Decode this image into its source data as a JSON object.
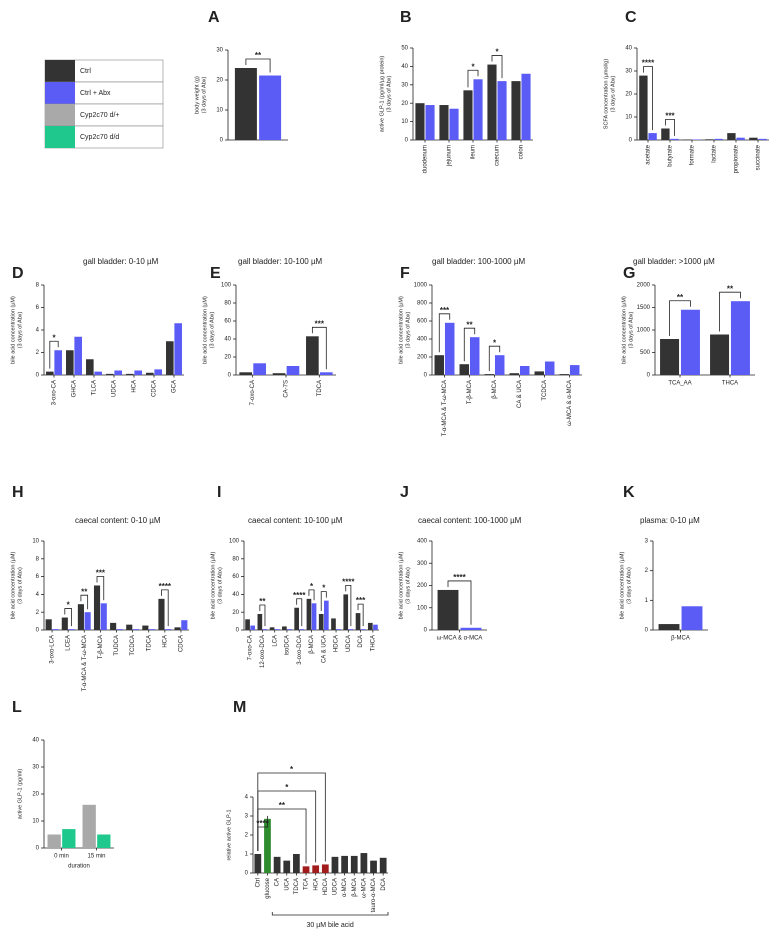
{
  "legend": [
    {
      "label": "Ctrl",
      "color": "#333333"
    },
    {
      "label": "Ctrl + Abx",
      "color": "#5a5cf5"
    },
    {
      "label": "Cyp2c70 d/+",
      "color": "#a9a9a9"
    },
    {
      "label": "Cyp2c70 d/d",
      "color": "#1fc98e"
    }
  ],
  "chart_data": [
    {
      "type": "bar",
      "panel": "A",
      "ylabel": [
        "body weight (g)",
        "(3 days of Abx)"
      ],
      "categories": [
        null
      ],
      "series": [
        {
          "color": "#333333",
          "values": [
            24
          ]
        },
        {
          "color": "#5a5cf5",
          "values": [
            21.5
          ]
        }
      ],
      "ylim": [
        0,
        30
      ],
      "yticks": [
        0,
        10,
        20,
        30
      ],
      "annotations": [
        {
          "text": "**",
          "category": 0
        }
      ]
    },
    {
      "type": "bar",
      "panel": "B",
      "ylabel": [
        "active GLP-1 (pg/ml/µg protein)",
        "(3 days of Abx)"
      ],
      "categories": [
        "duodenum",
        "jejunum",
        "ileum",
        "caecum",
        "colon"
      ],
      "series": [
        {
          "color": "#333333",
          "values": [
            20,
            19,
            27,
            41,
            32
          ]
        },
        {
          "color": "#5a5cf5",
          "values": [
            19,
            17,
            33,
            32,
            36
          ]
        }
      ],
      "ylim": [
        0,
        50
      ],
      "yticks": [
        0,
        10,
        20,
        30,
        40,
        50
      ],
      "annotations": [
        {
          "text": "*",
          "category": 2
        },
        {
          "text": "*",
          "category": 3
        }
      ]
    },
    {
      "type": "bar",
      "panel": "C",
      "ylabel": [
        "SCFA concentration (µmol/g)",
        "(3 days of Abx)"
      ],
      "categories": [
        "acetate",
        "butyrate",
        "formate",
        "lactate",
        "propionate",
        "succinate"
      ],
      "series": [
        {
          "color": "#333333",
          "values": [
            28,
            5,
            0.2,
            0.3,
            3,
            1
          ]
        },
        {
          "color": "#5a5cf5",
          "values": [
            3,
            0.5,
            0.2,
            0.5,
            1,
            0.5
          ]
        }
      ],
      "ylim": [
        0,
        40
      ],
      "yticks": [
        0,
        10,
        20,
        30,
        40
      ],
      "annotations": [
        {
          "text": "****",
          "category": 0
        },
        {
          "text": "***",
          "category": 1
        }
      ]
    },
    {
      "type": "bar",
      "panel": "D",
      "title": "gall bladder: 0-10 µM",
      "ylabel": [
        "bile acid concentration (µM)",
        "(3 days of Abx)"
      ],
      "categories": [
        "3-oxo-CA",
        "GHCA",
        "TLCA",
        "UDCA",
        "HCA",
        "CDCA",
        "GCA"
      ],
      "series": [
        {
          "color": "#333333",
          "values": [
            0.3,
            2.2,
            1.4,
            0.1,
            0.1,
            0.2,
            3.0
          ]
        },
        {
          "color": "#5a5cf5",
          "values": [
            2.2,
            3.4,
            0.3,
            0.4,
            0.4,
            0.5,
            4.6
          ]
        }
      ],
      "ylim": [
        0,
        8
      ],
      "yticks": [
        0,
        2,
        4,
        6,
        8
      ],
      "annotations": [
        {
          "text": "*",
          "category": 0
        }
      ]
    },
    {
      "type": "bar",
      "panel": "E",
      "title": "gall bladder: 10-100 µM",
      "ylabel": [
        "bile acid concentration (µM)",
        "(3 days of Abx)"
      ],
      "categories": [
        "7-oxo-CA",
        "CA-7S",
        "TDCA"
      ],
      "series": [
        {
          "color": "#333333",
          "values": [
            3,
            2,
            43
          ]
        },
        {
          "color": "#5a5cf5",
          "values": [
            13,
            10,
            3
          ]
        }
      ],
      "ylim": [
        0,
        100
      ],
      "yticks": [
        0,
        20,
        40,
        60,
        80,
        100
      ],
      "annotations": [
        {
          "text": "***",
          "category": 2
        }
      ]
    },
    {
      "type": "bar",
      "panel": "F",
      "title": "gall bladder: 100-1000 µM",
      "ylabel": [
        "bile acid concentration (µM)",
        "(3 days of Abx)"
      ],
      "categories": [
        "T-α-MCA & T-ω-MCA",
        "T-β-MCA",
        "β-MCA",
        "CA & UCA",
        "TCDCA",
        "ω-MCA & α-MCA"
      ],
      "series": [
        {
          "color": "#333333",
          "values": [
            220,
            120,
            10,
            20,
            40,
            10
          ]
        },
        {
          "color": "#5a5cf5",
          "values": [
            580,
            420,
            220,
            100,
            150,
            110
          ]
        }
      ],
      "ylim": [
        0,
        1000
      ],
      "yticks": [
        0,
        200,
        400,
        600,
        800,
        1000
      ],
      "annotations": [
        {
          "text": "***",
          "category": 0
        },
        {
          "text": "**",
          "category": 1
        },
        {
          "text": "*",
          "category": 2
        }
      ]
    },
    {
      "type": "bar",
      "panel": "G",
      "title": "gall bladder: >1000 µM",
      "ylabel": [
        "bile acid concentration (µM)",
        "(3 days of Abx)"
      ],
      "categories": [
        "TCA_AA",
        "THCA"
      ],
      "series": [
        {
          "color": "#333333",
          "values": [
            800,
            900
          ]
        },
        {
          "color": "#5a5cf5",
          "values": [
            1450,
            1640
          ]
        }
      ],
      "ylim": [
        0,
        2000
      ],
      "yticks": [
        0,
        500,
        1000,
        1500,
        2000
      ],
      "annotations": [
        {
          "text": "**",
          "category": 0
        },
        {
          "text": "**",
          "category": 1
        }
      ]
    },
    {
      "type": "bar",
      "panel": "H",
      "title": "caecal content: 0-10 µM",
      "ylabel": [
        "bile acid concentration (µM)",
        "(3 days of Abx)"
      ],
      "categories": [
        "3-oxo-LCA",
        "LCEA",
        "T-α-MCA & T-ω-MCA",
        "T-β-MCA",
        "TUDCA",
        "TCDCA",
        "TDCA",
        "HCA",
        "CDCA"
      ],
      "series": [
        {
          "color": "#333333",
          "values": [
            1.2,
            1.4,
            2.9,
            5.0,
            0.8,
            0.6,
            0.5,
            3.5,
            0.3
          ]
        },
        {
          "color": "#5a5cf5",
          "values": [
            0.1,
            0.1,
            2.0,
            3.0,
            0.1,
            0.1,
            0.1,
            0.1,
            1.1
          ]
        }
      ],
      "ylim": [
        0,
        10
      ],
      "yticks": [
        0,
        2,
        4,
        6,
        8,
        10
      ],
      "annotations": [
        {
          "text": "*",
          "category": 1
        },
        {
          "text": "**",
          "category": 2
        },
        {
          "text": "***",
          "category": 3
        },
        {
          "text": "****",
          "category": 7
        }
      ]
    },
    {
      "type": "bar",
      "panel": "I",
      "title": "caecal content: 10-100 µM",
      "ylabel": [
        "bile acid concentration (µM)",
        "(3 days of Abx)"
      ],
      "categories": [
        "7-oxo-CA",
        "12-oxo-DCA",
        "LCA",
        "isoDCA",
        "3-oxo-DCA",
        "β-MCA",
        "CA & UCA",
        "HDCA",
        "UDCA",
        "DCA",
        "THCA"
      ],
      "series": [
        {
          "color": "#333333",
          "values": [
            12,
            18,
            3,
            4,
            25,
            35,
            18,
            13,
            40,
            19,
            8
          ]
        },
        {
          "color": "#5a5cf5",
          "values": [
            5,
            1,
            1,
            1,
            1,
            30,
            33,
            1,
            1,
            1,
            6
          ]
        }
      ],
      "ylim": [
        0,
        100
      ],
      "yticks": [
        0,
        20,
        40,
        60,
        80,
        100
      ],
      "annotations": [
        {
          "text": "**",
          "category": 1
        },
        {
          "text": "****",
          "category": 4
        },
        {
          "text": "*",
          "category": 5
        },
        {
          "text": "*",
          "category": 6
        },
        {
          "text": "****",
          "category": 8
        },
        {
          "text": "***",
          "category": 9
        }
      ]
    },
    {
      "type": "bar",
      "panel": "J",
      "title": "caecal content: 100-1000 µM",
      "ylabel": [
        "bile acid concentration (µM)",
        "(3 days of Abx)"
      ],
      "categories": [
        "ω-MCA & α-MCA"
      ],
      "series": [
        {
          "color": "#333333",
          "values": [
            180
          ]
        },
        {
          "color": "#5a5cf5",
          "values": [
            10
          ]
        }
      ],
      "ylim": [
        0,
        400
      ],
      "yticks": [
        0,
        100,
        200,
        300,
        400
      ],
      "annotations": [
        {
          "text": "****",
          "category": 0
        }
      ]
    },
    {
      "type": "bar",
      "panel": "K",
      "title": "plasma: 0-10 µM",
      "ylabel": [
        "bile acid concentration (µM)",
        "(3 days of Abx)"
      ],
      "categories": [
        "β-MCA"
      ],
      "series": [
        {
          "color": "#333333",
          "values": [
            0.2
          ]
        },
        {
          "color": "#5a5cf5",
          "values": [
            0.8
          ]
        }
      ],
      "ylim": [
        0,
        3
      ],
      "yticks": [
        0,
        1,
        2,
        3
      ]
    },
    {
      "type": "bar",
      "panel": "L",
      "ylabel": [
        "active GLP-1 (pg/ml)"
      ],
      "xlabel": "duration",
      "categories": [
        "0 min",
        "15 min"
      ],
      "series": [
        {
          "color": "#a9a9a9",
          "values": [
            5,
            16
          ]
        },
        {
          "color": "#1fc98e",
          "values": [
            7,
            5
          ]
        }
      ],
      "ylim": [
        0,
        40
      ],
      "yticks": [
        0,
        10,
        20,
        30,
        40
      ]
    },
    {
      "type": "bar",
      "panel": "M",
      "ylabel": [
        "relative active GLP-1"
      ],
      "categories": [
        "Ctrl",
        "glucose",
        "CA",
        "UCA",
        "TDCA",
        "TCA",
        "HCA",
        "HDCA",
        "UDCA",
        "α-MCA",
        "β-MCA",
        "ω-MCA",
        "tauro-α-MCA",
        "DCA"
      ],
      "values": [
        1.0,
        2.85,
        0.85,
        0.65,
        1.0,
        0.35,
        0.4,
        0.45,
        0.85,
        0.9,
        0.9,
        1.05,
        0.65,
        0.8
      ],
      "colors": [
        "#333333",
        "#2e8b2e",
        "#333333",
        "#333333",
        "#333333",
        "#a31c1c",
        "#a31c1c",
        "#a31c1c",
        "#333333",
        "#333333",
        "#333333",
        "#333333",
        "#333333",
        "#333333"
      ],
      "ylim": [
        0,
        4
      ],
      "yticks": [
        0,
        1,
        2,
        3,
        4
      ],
      "annotations": [
        {
          "text": "*",
          "from": 0,
          "to": 7
        },
        {
          "text": "*",
          "from": 0,
          "to": 6
        },
        {
          "text": "**",
          "from": 0,
          "to": 5
        },
        {
          "text": "****",
          "from": 0,
          "to": 1
        }
      ],
      "bracket": {
        "label": "30 µM bile acid",
        "from": 2,
        "to": 13
      }
    }
  ]
}
